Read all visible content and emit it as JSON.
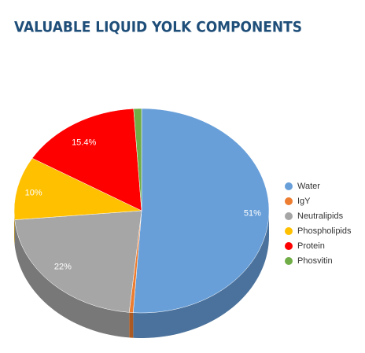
{
  "chart_data": {
    "type": "pie",
    "title": "VALUABLE LIQUID YOLK COMPONENTS",
    "categories": [
      "Water",
      "IgY",
      "Neutralipids",
      "Phospholipids",
      "Protein",
      "Phosvitin"
    ],
    "values": [
      51,
      0.5,
      22,
      10,
      15.4,
      1
    ],
    "value_labels": [
      "51%",
      null,
      "22%",
      "10%",
      "15.4%",
      null
    ],
    "colors": [
      "#689fd9",
      "#ed7d31",
      "#a6a6a6",
      "#ffc000",
      "#ff0000",
      "#70ad47"
    ],
    "legend": "right"
  }
}
